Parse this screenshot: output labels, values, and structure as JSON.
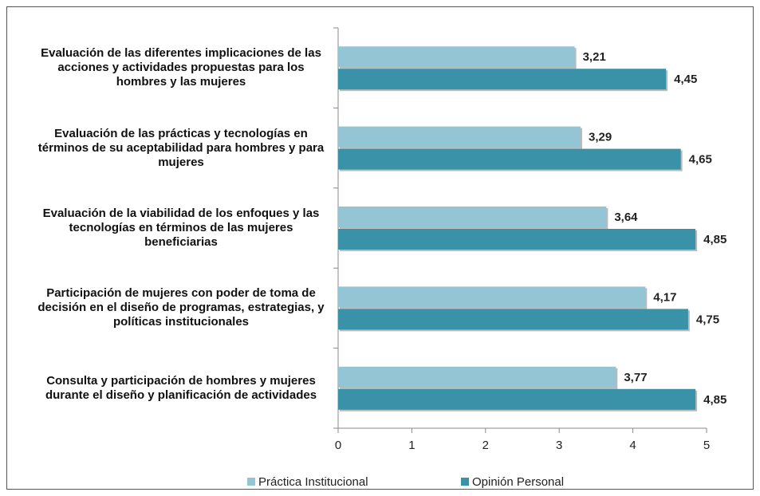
{
  "chart_data": {
    "type": "barh",
    "categories": [
      "Evaluación de las diferentes implicaciones de las acciones y actividades propuestas para los hombres y las mujeres",
      "Evaluación de las prácticas y tecnologías en términos de su aceptabilidad para hombres y para mujeres",
      "Evaluación de la viabilidad de los enfoques y las tecnologías en términos de las mujeres beneficiarias",
      "Participación de mujeres con poder de toma de decisión en el diseño de programas, estrategias, y políticas institucionales",
      "Consulta y participación de hombres y mujeres durante el diseño y planificación de actividades"
    ],
    "series": [
      {
        "name": "Práctica Institucional",
        "color": "#93c5d5",
        "values": [
          3.21,
          3.29,
          3.64,
          4.17,
          3.77
        ],
        "value_labels": [
          "3,21",
          "3,29",
          "3,64",
          "4,17",
          "3,77"
        ]
      },
      {
        "name": "Opinión Personal",
        "color": "#3a92a8",
        "values": [
          4.45,
          4.65,
          4.85,
          4.75,
          4.85
        ],
        "value_labels": [
          "4,45",
          "4,65",
          "4,85",
          "4,75",
          "4,85"
        ]
      }
    ],
    "xlim": [
      0,
      5
    ],
    "xticks": [
      0,
      1,
      2,
      3,
      4,
      5
    ],
    "grid": false,
    "legend": "bottom"
  }
}
